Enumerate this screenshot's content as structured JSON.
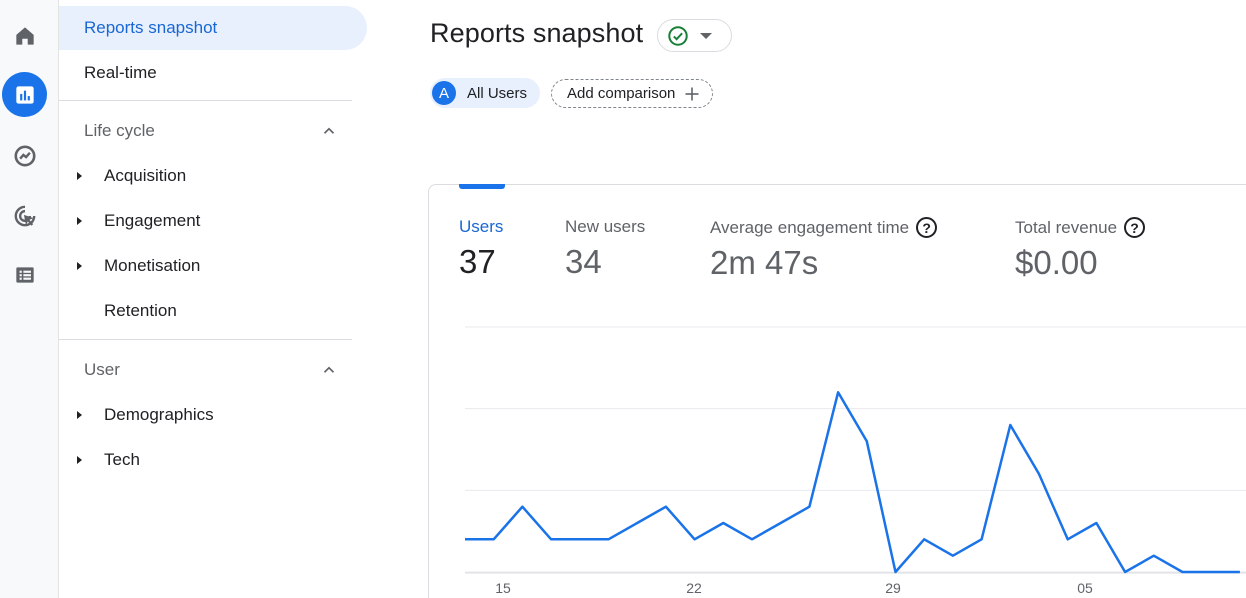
{
  "rail": {
    "items": [
      {
        "name": "home-icon"
      },
      {
        "name": "reports-icon",
        "active": true
      },
      {
        "name": "explore-icon"
      },
      {
        "name": "advertising-icon"
      },
      {
        "name": "configure-icon"
      }
    ]
  },
  "sidebar": {
    "reports_snapshot": "Reports snapshot",
    "realtime": "Real-time",
    "lifecycle": {
      "title": "Life cycle",
      "items": [
        "Acquisition",
        "Engagement",
        "Monetisation",
        "Retention"
      ]
    },
    "user": {
      "title": "User",
      "items": [
        "Demographics",
        "Tech"
      ]
    }
  },
  "header": {
    "title": "Reports snapshot",
    "status_icon": "check-circle-icon",
    "comparison_user_avatar": "A",
    "comparison_user_label": "All Users",
    "add_comparison": "Add comparison"
  },
  "metrics": [
    {
      "label": "Users",
      "value": "37",
      "active": true
    },
    {
      "label": "New users",
      "value": "34"
    },
    {
      "label": "Average engagement time",
      "value": "2m 47s",
      "help": "?"
    },
    {
      "label": "Total revenue",
      "value": "$0.00",
      "help": "?"
    }
  ],
  "chart_data": {
    "type": "line",
    "x_tick_labels": [
      "15",
      "22",
      "29",
      "05"
    ],
    "series": [
      {
        "values": [
          2,
          2,
          4,
          2,
          2,
          2,
          3,
          4,
          2,
          3,
          2,
          3,
          4,
          11,
          8,
          0,
          2,
          1,
          2,
          9,
          6,
          2,
          3,
          0,
          1,
          0,
          0,
          0
        ]
      }
    ],
    "ylim": [
      0,
      15
    ],
    "grid": true,
    "color": "#1a73e8"
  }
}
